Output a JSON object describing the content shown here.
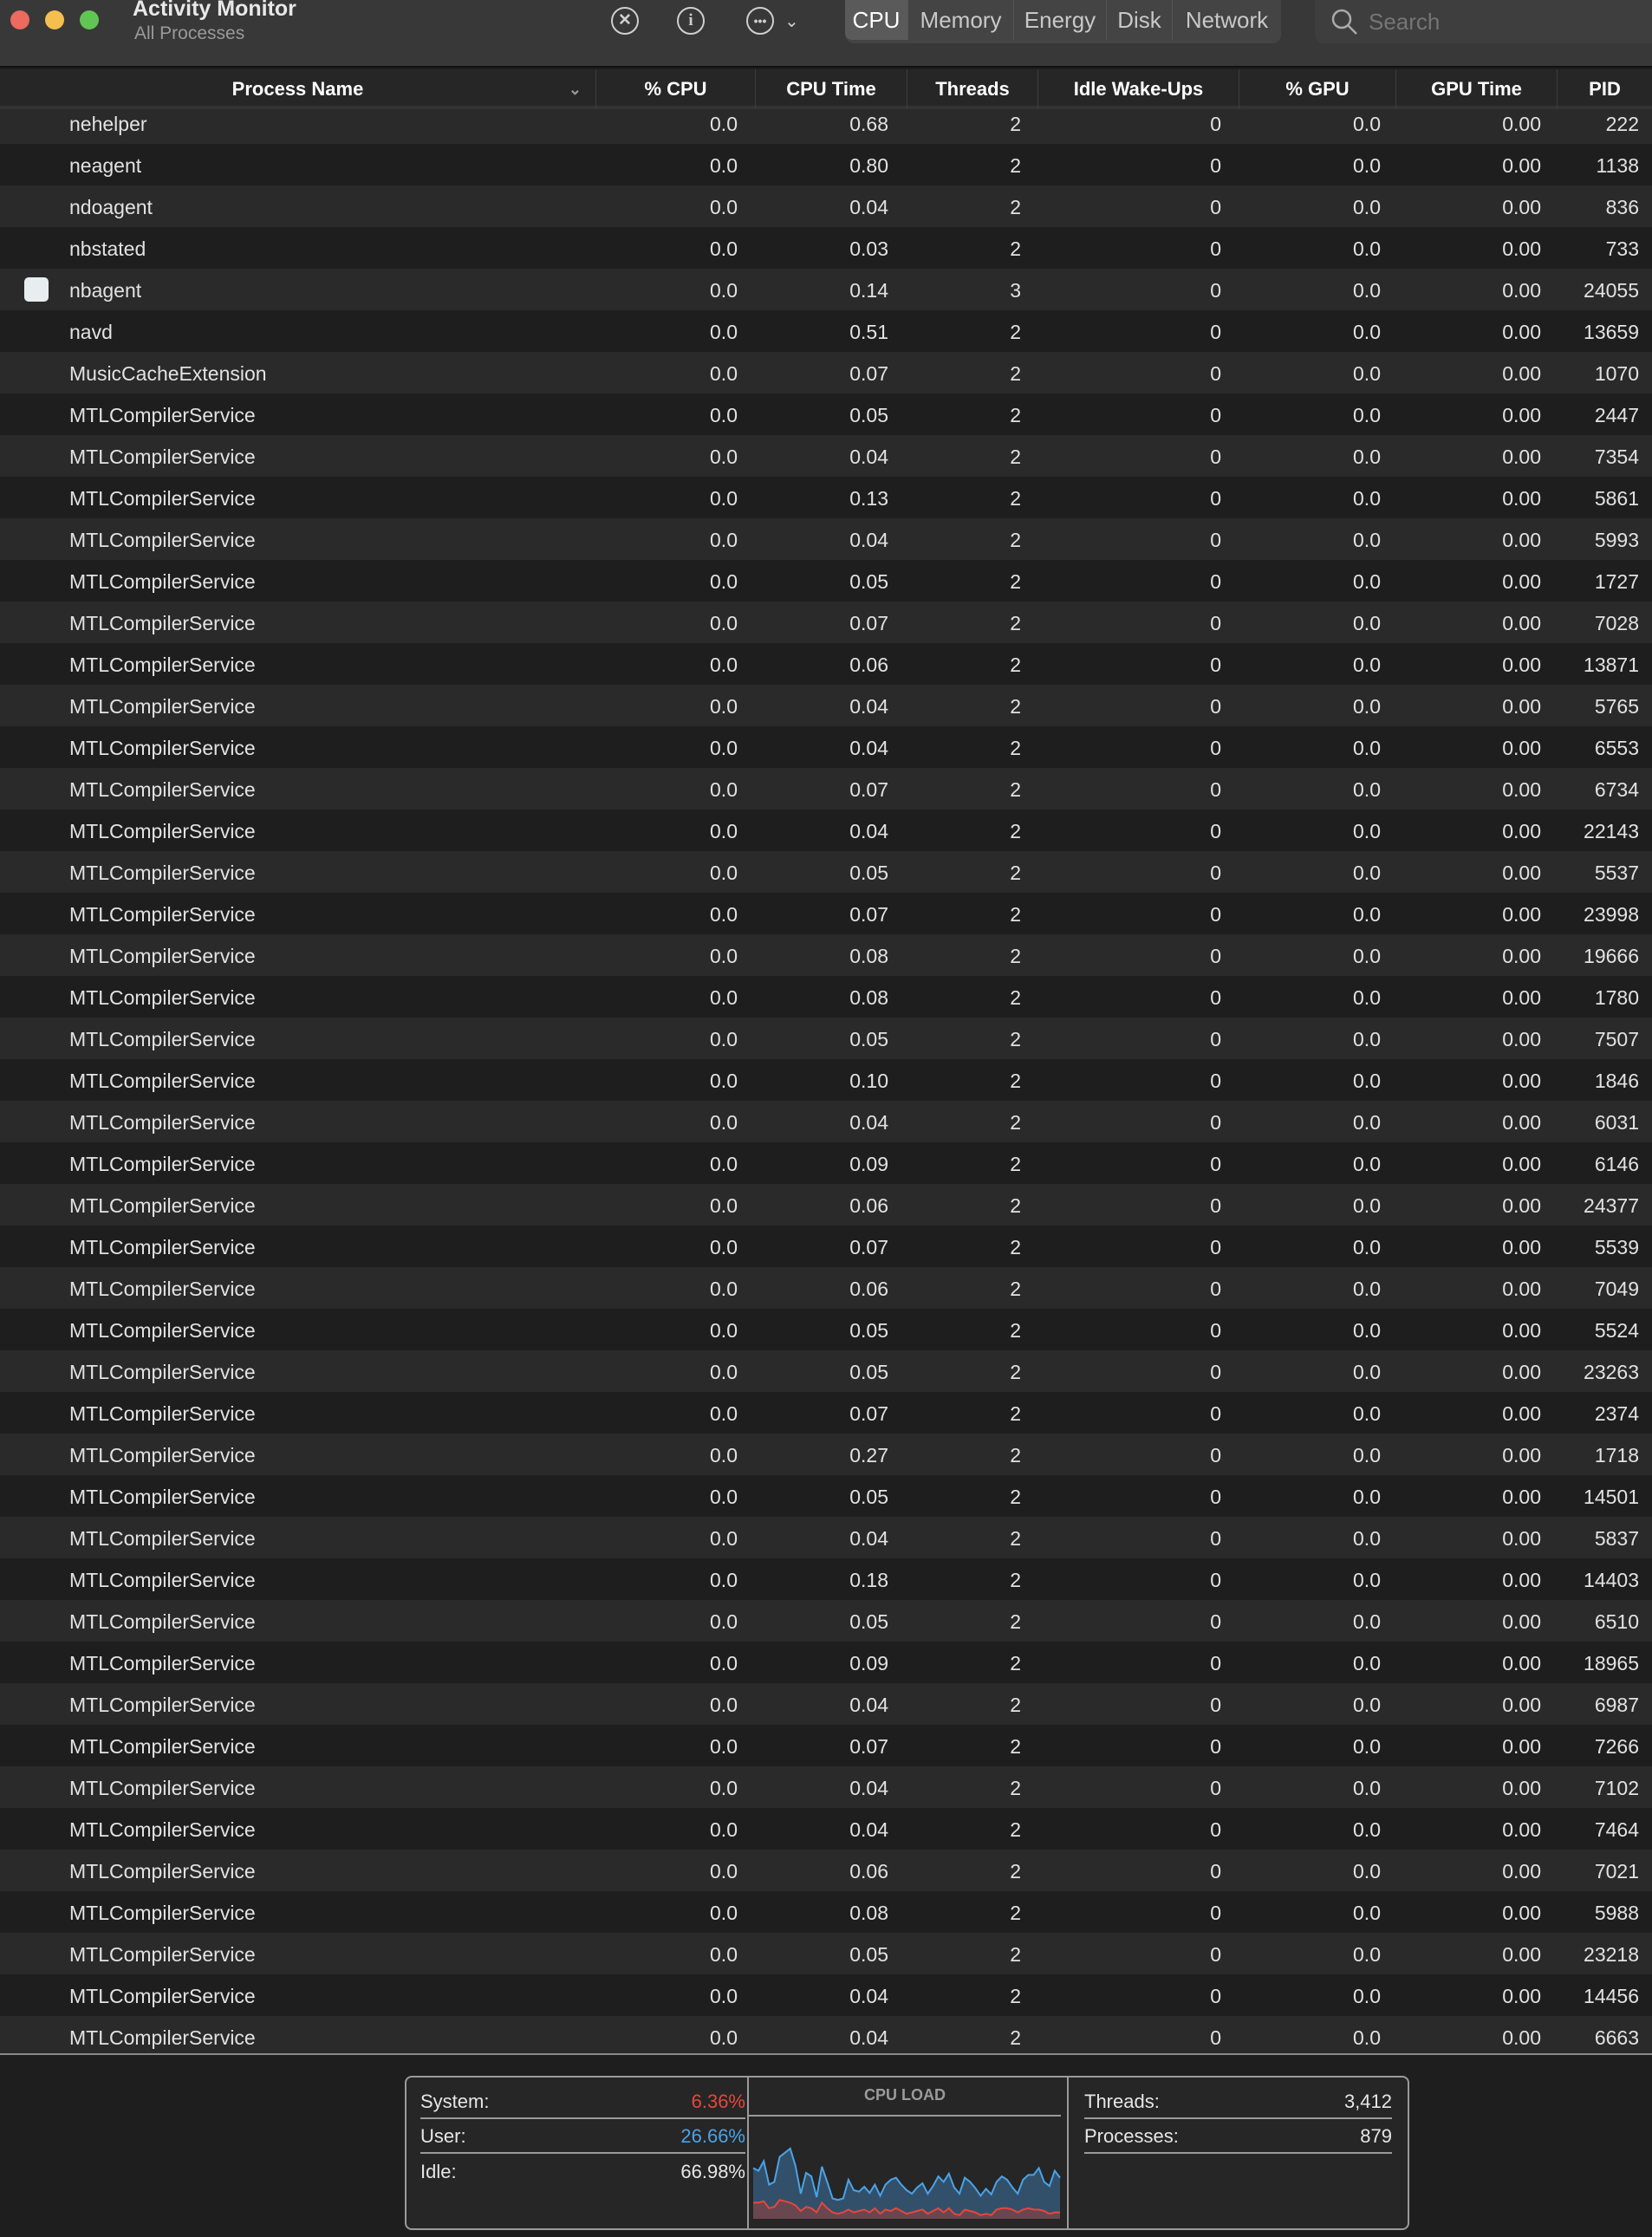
{
  "window": {
    "title": "Activity Monitor",
    "subtitle": "All Processes"
  },
  "toolbar": {
    "icons": [
      "stop-process-icon",
      "info-icon",
      "more-actions-icon",
      "chevron-down-icon"
    ],
    "tabs": [
      "CPU",
      "Memory",
      "Energy",
      "Disk",
      "Network"
    ],
    "active_tab": "CPU",
    "search_placeholder": "Search"
  },
  "columns": [
    "Process Name",
    "% CPU",
    "CPU Time",
    "Threads",
    "Idle Wake-Ups",
    "% GPU",
    "GPU Time",
    "PID"
  ],
  "rows": [
    [
      "nehelper",
      "0.0",
      "0.68",
      "2",
      "0",
      "0.0",
      "0.00",
      "222"
    ],
    [
      "neagent",
      "0.0",
      "0.80",
      "2",
      "0",
      "0.0",
      "0.00",
      "1138"
    ],
    [
      "ndoagent",
      "0.0",
      "0.04",
      "2",
      "0",
      "0.0",
      "0.00",
      "836"
    ],
    [
      "nbstated",
      "0.0",
      "0.03",
      "2",
      "0",
      "0.0",
      "0.00",
      "733"
    ],
    [
      "nbagent",
      "0.0",
      "0.14",
      "3",
      "0",
      "0.0",
      "0.00",
      "24055"
    ],
    [
      "navd",
      "0.0",
      "0.51",
      "2",
      "0",
      "0.0",
      "0.00",
      "13659"
    ],
    [
      "MusicCacheExtension",
      "0.0",
      "0.07",
      "2",
      "0",
      "0.0",
      "0.00",
      "1070"
    ],
    [
      "MTLCompilerService",
      "0.0",
      "0.05",
      "2",
      "0",
      "0.0",
      "0.00",
      "2447"
    ],
    [
      "MTLCompilerService",
      "0.0",
      "0.04",
      "2",
      "0",
      "0.0",
      "0.00",
      "7354"
    ],
    [
      "MTLCompilerService",
      "0.0",
      "0.13",
      "2",
      "0",
      "0.0",
      "0.00",
      "5861"
    ],
    [
      "MTLCompilerService",
      "0.0",
      "0.04",
      "2",
      "0",
      "0.0",
      "0.00",
      "5993"
    ],
    [
      "MTLCompilerService",
      "0.0",
      "0.05",
      "2",
      "0",
      "0.0",
      "0.00",
      "1727"
    ],
    [
      "MTLCompilerService",
      "0.0",
      "0.07",
      "2",
      "0",
      "0.0",
      "0.00",
      "7028"
    ],
    [
      "MTLCompilerService",
      "0.0",
      "0.06",
      "2",
      "0",
      "0.0",
      "0.00",
      "13871"
    ],
    [
      "MTLCompilerService",
      "0.0",
      "0.04",
      "2",
      "0",
      "0.0",
      "0.00",
      "5765"
    ],
    [
      "MTLCompilerService",
      "0.0",
      "0.04",
      "2",
      "0",
      "0.0",
      "0.00",
      "6553"
    ],
    [
      "MTLCompilerService",
      "0.0",
      "0.07",
      "2",
      "0",
      "0.0",
      "0.00",
      "6734"
    ],
    [
      "MTLCompilerService",
      "0.0",
      "0.04",
      "2",
      "0",
      "0.0",
      "0.00",
      "22143"
    ],
    [
      "MTLCompilerService",
      "0.0",
      "0.05",
      "2",
      "0",
      "0.0",
      "0.00",
      "5537"
    ],
    [
      "MTLCompilerService",
      "0.0",
      "0.07",
      "2",
      "0",
      "0.0",
      "0.00",
      "23998"
    ],
    [
      "MTLCompilerService",
      "0.0",
      "0.08",
      "2",
      "0",
      "0.0",
      "0.00",
      "19666"
    ],
    [
      "MTLCompilerService",
      "0.0",
      "0.08",
      "2",
      "0",
      "0.0",
      "0.00",
      "1780"
    ],
    [
      "MTLCompilerService",
      "0.0",
      "0.05",
      "2",
      "0",
      "0.0",
      "0.00",
      "7507"
    ],
    [
      "MTLCompilerService",
      "0.0",
      "0.10",
      "2",
      "0",
      "0.0",
      "0.00",
      "1846"
    ],
    [
      "MTLCompilerService",
      "0.0",
      "0.04",
      "2",
      "0",
      "0.0",
      "0.00",
      "6031"
    ],
    [
      "MTLCompilerService",
      "0.0",
      "0.09",
      "2",
      "0",
      "0.0",
      "0.00",
      "6146"
    ],
    [
      "MTLCompilerService",
      "0.0",
      "0.06",
      "2",
      "0",
      "0.0",
      "0.00",
      "24377"
    ],
    [
      "MTLCompilerService",
      "0.0",
      "0.07",
      "2",
      "0",
      "0.0",
      "0.00",
      "5539"
    ],
    [
      "MTLCompilerService",
      "0.0",
      "0.06",
      "2",
      "0",
      "0.0",
      "0.00",
      "7049"
    ],
    [
      "MTLCompilerService",
      "0.0",
      "0.05",
      "2",
      "0",
      "0.0",
      "0.00",
      "5524"
    ],
    [
      "MTLCompilerService",
      "0.0",
      "0.05",
      "2",
      "0",
      "0.0",
      "0.00",
      "23263"
    ],
    [
      "MTLCompilerService",
      "0.0",
      "0.07",
      "2",
      "0",
      "0.0",
      "0.00",
      "2374"
    ],
    [
      "MTLCompilerService",
      "0.0",
      "0.27",
      "2",
      "0",
      "0.0",
      "0.00",
      "1718"
    ],
    [
      "MTLCompilerService",
      "0.0",
      "0.05",
      "2",
      "0",
      "0.0",
      "0.00",
      "14501"
    ],
    [
      "MTLCompilerService",
      "0.0",
      "0.04",
      "2",
      "0",
      "0.0",
      "0.00",
      "5837"
    ],
    [
      "MTLCompilerService",
      "0.0",
      "0.18",
      "2",
      "0",
      "0.0",
      "0.00",
      "14403"
    ],
    [
      "MTLCompilerService",
      "0.0",
      "0.05",
      "2",
      "0",
      "0.0",
      "0.00",
      "6510"
    ],
    [
      "MTLCompilerService",
      "0.0",
      "0.09",
      "2",
      "0",
      "0.0",
      "0.00",
      "18965"
    ],
    [
      "MTLCompilerService",
      "0.0",
      "0.04",
      "2",
      "0",
      "0.0",
      "0.00",
      "6987"
    ],
    [
      "MTLCompilerService",
      "0.0",
      "0.07",
      "2",
      "0",
      "0.0",
      "0.00",
      "7266"
    ],
    [
      "MTLCompilerService",
      "0.0",
      "0.04",
      "2",
      "0",
      "0.0",
      "0.00",
      "7102"
    ],
    [
      "MTLCompilerService",
      "0.0",
      "0.04",
      "2",
      "0",
      "0.0",
      "0.00",
      "7464"
    ],
    [
      "MTLCompilerService",
      "0.0",
      "0.06",
      "2",
      "0",
      "0.0",
      "0.00",
      "7021"
    ],
    [
      "MTLCompilerService",
      "0.0",
      "0.08",
      "2",
      "0",
      "0.0",
      "0.00",
      "5988"
    ],
    [
      "MTLCompilerService",
      "0.0",
      "0.05",
      "2",
      "0",
      "0.0",
      "0.00",
      "23218"
    ],
    [
      "MTLCompilerService",
      "0.0",
      "0.04",
      "2",
      "0",
      "0.0",
      "0.00",
      "14456"
    ],
    [
      "MTLCompilerService",
      "0.0",
      "0.04",
      "2",
      "0",
      "0.0",
      "0.00",
      "6663"
    ]
  ],
  "footer": {
    "system_label": "System:",
    "system_value": "6.36%",
    "system_color": "#e5473b",
    "user_label": "User:",
    "user_value": "26.66%",
    "user_color": "#4aa3e8",
    "idle_label": "Idle:",
    "idle_value": "66.98%",
    "cpu_load_label": "CPU LOAD",
    "threads_label": "Threads:",
    "threads_value": "3,412",
    "processes_label": "Processes:",
    "processes_value": "879",
    "cpu_load_history": {
      "total": [
        72,
        68,
        82,
        48,
        52,
        88,
        94,
        100,
        75,
        35,
        65,
        60,
        30,
        74,
        52,
        28,
        26,
        28,
        55,
        40,
        38,
        45,
        36,
        48,
        32,
        48,
        55,
        58,
        48,
        40,
        35,
        44,
        50,
        35,
        46,
        60,
        52,
        64,
        44,
        35,
        58,
        52,
        43,
        32,
        42,
        34,
        52,
        60,
        55,
        44,
        35,
        55,
        62,
        62,
        72,
        52,
        46,
        68,
        58
      ],
      "system": [
        22,
        22,
        24,
        14,
        16,
        26,
        24,
        22,
        18,
        10,
        16,
        14,
        8,
        22,
        14,
        8,
        6,
        8,
        12,
        8,
        10,
        12,
        8,
        14,
        6,
        12,
        10,
        14,
        10,
        6,
        8,
        10,
        12,
        6,
        10,
        14,
        8,
        14,
        6,
        4,
        12,
        10,
        8,
        4,
        6,
        4,
        12,
        14,
        14,
        12,
        8,
        12,
        14,
        12,
        12,
        10,
        6,
        8,
        8
      ]
    }
  }
}
